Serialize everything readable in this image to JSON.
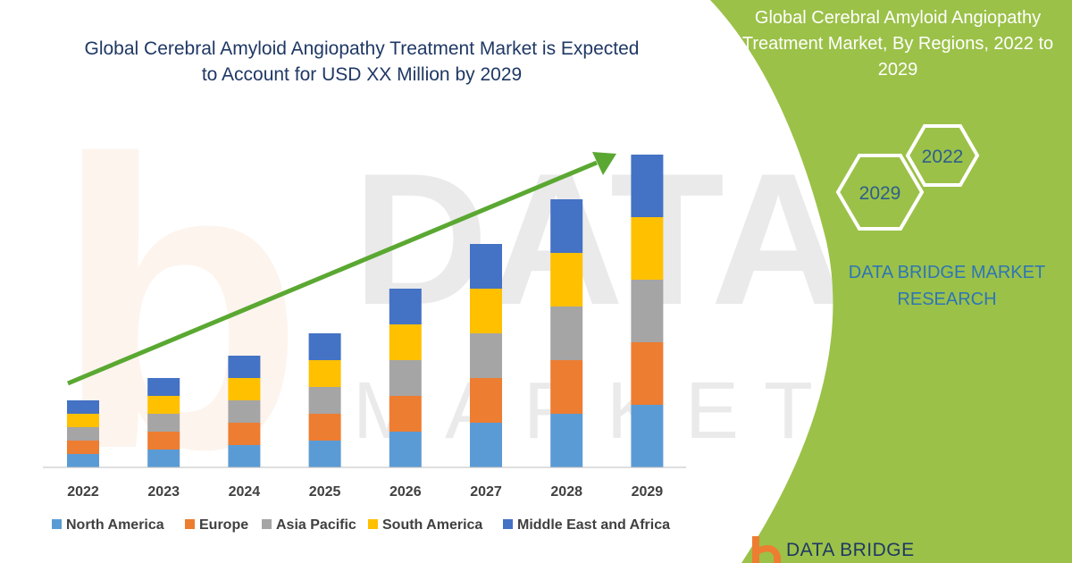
{
  "chart_data": {
    "type": "bar",
    "stacked": true,
    "title": "Global Cerebral Amyloid Angiopathy Treatment Market is Expected to Account for USD XX Million by 2029",
    "categories": [
      "2022",
      "2023",
      "2024",
      "2025",
      "2026",
      "2027",
      "2028",
      "2029"
    ],
    "series": [
      {
        "name": "North America",
        "color": "#5b9bd5",
        "values": [
          15,
          20,
          25,
          30,
          40,
          50,
          60,
          70
        ]
      },
      {
        "name": "Europe",
        "color": "#ed7d31",
        "values": [
          15,
          20,
          25,
          30,
          40,
          50,
          60,
          70
        ]
      },
      {
        "name": "Asia Pacific",
        "color": "#a5a5a5",
        "values": [
          15,
          20,
          25,
          30,
          40,
          50,
          60,
          70
        ]
      },
      {
        "name": "South America",
        "color": "#ffc000",
        "values": [
          15,
          20,
          25,
          30,
          40,
          50,
          60,
          70
        ]
      },
      {
        "name": "Middle East and Africa",
        "color": "#4472c4",
        "values": [
          15,
          20,
          25,
          30,
          40,
          50,
          60,
          70
        ]
      }
    ],
    "legend_position": "bottom",
    "grid": false,
    "trend_arrow": true
  },
  "side_panel": {
    "title": "Global Cerebral Amyloid Angiopathy Treatment Market, By Regions, 2022 to 2029",
    "hex_left": "2029",
    "hex_right": "2022",
    "brand_name": "DATA BRIDGE MARKET RESEARCH",
    "accent_color": "#9bc148"
  },
  "footer": {
    "brand": "DATA BRIDGE"
  }
}
